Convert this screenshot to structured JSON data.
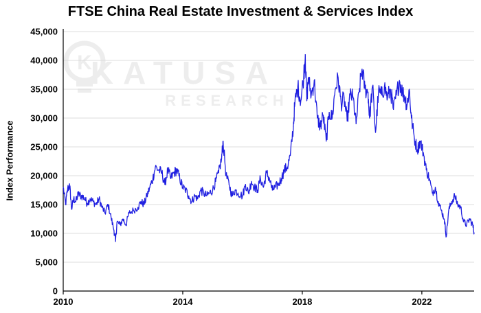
{
  "chart_data": {
    "type": "line",
    "title": "FTSE China Real Estate Investment & Services Index",
    "ylabel": "Index Performance",
    "xlabel": "",
    "ylim": [
      0,
      45000
    ],
    "xlim": [
      2010.0,
      2023.75
    ],
    "yticks": [
      0,
      5000,
      10000,
      15000,
      20000,
      25000,
      30000,
      35000,
      40000,
      45000
    ],
    "ytick_labels": [
      "0",
      "5,000",
      "10,000",
      "15,000",
      "20,000",
      "25,000",
      "30,000",
      "35,000",
      "40,000",
      "45,000"
    ],
    "xticks": [
      2010,
      2014,
      2018,
      2022
    ],
    "xtick_labels": [
      "2010",
      "2014",
      "2018",
      "2022"
    ],
    "grid": "horizontal",
    "line_color": "#1f1fe0",
    "series": [
      {
        "x": [
          2010.0,
          2010.08,
          2010.15,
          2010.22,
          2010.28,
          2010.35,
          2010.42,
          2010.5,
          2010.6,
          2010.7,
          2010.8,
          2010.9,
          2011.0,
          2011.1,
          2011.2,
          2011.3,
          2011.4,
          2011.5,
          2011.6,
          2011.7,
          2011.75,
          2011.8,
          2011.9,
          2012.0,
          2012.1,
          2012.2,
          2012.35,
          2012.5,
          2012.6,
          2012.7,
          2012.8,
          2012.9,
          2013.0,
          2013.08,
          2013.2,
          2013.3,
          2013.4,
          2013.5,
          2013.6,
          2013.7,
          2013.8,
          2013.9,
          2014.0,
          2014.1,
          2014.2,
          2014.3,
          2014.4,
          2014.5,
          2014.6,
          2014.7,
          2014.8,
          2014.9,
          2015.0,
          2015.1,
          2015.2,
          2015.3,
          2015.35,
          2015.45,
          2015.55,
          2015.65,
          2015.75,
          2015.85,
          2016.0,
          2016.1,
          2016.2,
          2016.3,
          2016.4,
          2016.5,
          2016.6,
          2016.7,
          2016.8,
          2016.9,
          2017.0,
          2017.1,
          2017.2,
          2017.3,
          2017.4,
          2017.5,
          2017.6,
          2017.7,
          2017.75,
          2017.85,
          2017.95,
          2018.05,
          2018.1,
          2018.15,
          2018.2,
          2018.3,
          2018.4,
          2018.5,
          2018.6,
          2018.7,
          2018.8,
          2018.9,
          2019.0,
          2019.1,
          2019.2,
          2019.3,
          2019.4,
          2019.5,
          2019.6,
          2019.7,
          2019.8,
          2019.9,
          2020.0,
          2020.1,
          2020.2,
          2020.25,
          2020.35,
          2020.45,
          2020.55,
          2020.65,
          2020.75,
          2020.85,
          2020.95,
          2021.05,
          2021.15,
          2021.25,
          2021.35,
          2021.45,
          2021.5,
          2021.58,
          2021.65,
          2021.75,
          2021.85,
          2021.95,
          2022.05,
          2022.15,
          2022.25,
          2022.35,
          2022.45,
          2022.55,
          2022.65,
          2022.75,
          2022.82,
          2022.9,
          2023.0,
          2023.1,
          2023.2,
          2023.3,
          2023.4,
          2023.5,
          2023.6,
          2023.7,
          2023.75
        ],
        "y": [
          18000,
          15000,
          17800,
          18200,
          14200,
          16000,
          15500,
          16800,
          16500,
          16200,
          15200,
          16000,
          15500,
          15000,
          16000,
          14500,
          13500,
          15000,
          12800,
          10500,
          8600,
          12000,
          11500,
          12500,
          11500,
          13500,
          14000,
          14500,
          15500,
          15000,
          16500,
          18000,
          19500,
          21500,
          21000,
          20500,
          18500,
          21000,
          19500,
          20500,
          21000,
          19500,
          18000,
          17500,
          16500,
          15500,
          16500,
          16000,
          17500,
          17000,
          16500,
          17000,
          17500,
          19000,
          20500,
          23000,
          26000,
          20000,
          18500,
          16500,
          17500,
          17000,
          16500,
          18500,
          17000,
          19000,
          18000,
          17500,
          19500,
          18000,
          20500,
          19500,
          17500,
          18000,
          18500,
          19500,
          21000,
          21500,
          23500,
          28500,
          32500,
          35500,
          33000,
          37500,
          41000,
          33000,
          37000,
          34000,
          36500,
          30000,
          28500,
          30500,
          26000,
          31000,
          30000,
          35000,
          37000,
          32500,
          33500,
          29500,
          34000,
          33500,
          29000,
          34500,
          38500,
          35000,
          34500,
          30000,
          35500,
          27500,
          34500,
          34000,
          35500,
          33500,
          35000,
          31500,
          34000,
          36500,
          34500,
          33500,
          32000,
          35000,
          30000,
          26500,
          24500,
          26000,
          24000,
          21000,
          19500,
          17000,
          18000,
          15500,
          14000,
          12500,
          9500,
          14000,
          15500,
          16500,
          15000,
          14500,
          12000,
          11500,
          12500,
          11500,
          10100
        ]
      }
    ]
  },
  "watermark": {
    "logo_letter": "K",
    "brand": "KATUSA",
    "sub": "RESEARCH"
  }
}
